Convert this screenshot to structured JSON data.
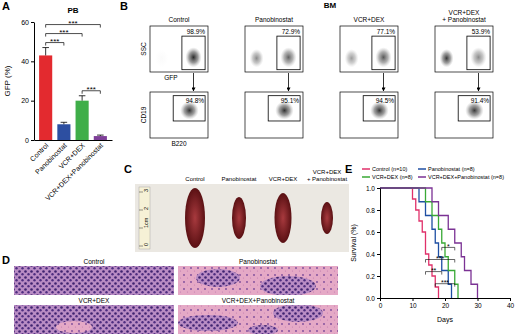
{
  "chart_data": [
    {
      "type": "bar",
      "title": "PB",
      "y_label": "GFP (%)",
      "categories": [
        "Control",
        "Panobinostat",
        "VCR+DEX",
        "VCR+DEX+Panobinostat"
      ],
      "values": [
        43,
        8,
        20,
        2
      ],
      "errors": [
        4,
        1,
        2.5,
        0.5
      ],
      "colors": [
        "#e32a2f",
        "#2d4fa1",
        "#3fae49",
        "#7e3f98"
      ],
      "ylim": [
        0,
        60
      ],
      "yticks": [
        0,
        20,
        40,
        60
      ],
      "annotations": [
        {
          "pair": [
            2,
            3
          ],
          "label": "***"
        },
        {
          "pair": [
            0,
            1
          ],
          "label": "***"
        },
        {
          "pair": [
            0,
            2
          ],
          "label": "***"
        },
        {
          "pair": [
            0,
            3
          ],
          "label": "***"
        }
      ]
    },
    {
      "type": "line",
      "line_style": "step",
      "x_label": "Days",
      "y_label": "Survival (%)",
      "xlim": [
        0,
        40
      ],
      "xticks": [
        0,
        10,
        20,
        30,
        40
      ],
      "ylim": [
        0,
        1
      ],
      "yticks": [
        {
          "value": 0,
          "label": "0.0"
        },
        0.2,
        0.4,
        0.6,
        0.8,
        {
          "value": 1,
          "label": "1.0"
        }
      ],
      "legend": "top",
      "series": [
        {
          "name": "Control (n=10)",
          "color": "#e0306a",
          "x": [
            0,
            10,
            11,
            12,
            13,
            14,
            15,
            16,
            17,
            18
          ],
          "values": [
            1,
            0.9,
            0.8,
            0.7,
            0.6,
            0.4,
            0.3,
            0.2,
            0.1,
            0
          ]
        },
        {
          "name": "Panobinostat (n=8)",
          "color": "#1f4fa3",
          "x": [
            0,
            12,
            14,
            16,
            17,
            18,
            19,
            21,
            22
          ],
          "values": [
            1,
            0.875,
            0.75,
            0.625,
            0.5,
            0.375,
            0.25,
            0.125,
            0
          ]
        },
        {
          "name": "VCR+DEX (n=8)",
          "color": "#39a935",
          "x": [
            0,
            14,
            16,
            18,
            19,
            20,
            21,
            23,
            24
          ],
          "values": [
            1,
            0.875,
            0.75,
            0.625,
            0.5,
            0.375,
            0.25,
            0.125,
            0
          ]
        },
        {
          "name": "VCR+DEX+Panobinostat (n=8)",
          "color": "#7b3294",
          "x": [
            0,
            16,
            18,
            21,
            23,
            25,
            26,
            28,
            30
          ],
          "values": [
            1,
            0.875,
            0.75,
            0.625,
            0.5,
            0.375,
            0.25,
            0.125,
            0
          ]
        }
      ],
      "annotations": [
        {
          "pair": [
            2,
            3
          ],
          "label": "*"
        },
        {
          "pair": [
            0,
            3
          ],
          "label": "***"
        },
        {
          "pair": [
            0,
            2
          ],
          "label": "**"
        },
        {
          "pair": [
            1,
            3
          ],
          "label": "***"
        }
      ]
    }
  ],
  "panel_labels": [
    "A",
    "B",
    "C",
    "D",
    "E"
  ],
  "flow": {
    "tissue": "BM",
    "columns": [
      "Control",
      "Panobinostat",
      "VCR+DEX",
      [
        "VCR+DEX",
        "+ Panobinostat"
      ]
    ],
    "top": {
      "x_label": "GFP",
      "y_label": "SSC",
      "gates": [
        {
          "value": 98.9,
          "label": "98.9%"
        },
        {
          "value": 72.9,
          "label": "72.9%"
        },
        {
          "value": 77.1,
          "label": "77.1%"
        },
        {
          "value": 53.9,
          "label": "53.9%"
        }
      ]
    },
    "bottom": {
      "x_label": "B220",
      "y_label": "CD19",
      "gates": [
        {
          "value": 94.8,
          "label": "94.8%"
        },
        {
          "value": 95.1,
          "label": "95.1%"
        },
        {
          "value": 94.5,
          "label": "94.5%"
        },
        {
          "value": 91.4,
          "label": "91.4%"
        }
      ]
    }
  },
  "spleens": {
    "labels": [
      "Control",
      "Panobinostat",
      "VCR+DEX",
      [
        "VCR+DEX",
        "+ Panobinostat"
      ]
    ],
    "ruler": [
      "0",
      "1cm",
      "2",
      "3"
    ]
  },
  "histology": {
    "labels": [
      "Control",
      "Panobinostat",
      "VCR+DEX",
      "VCR+DEX+Panobinostat"
    ]
  }
}
